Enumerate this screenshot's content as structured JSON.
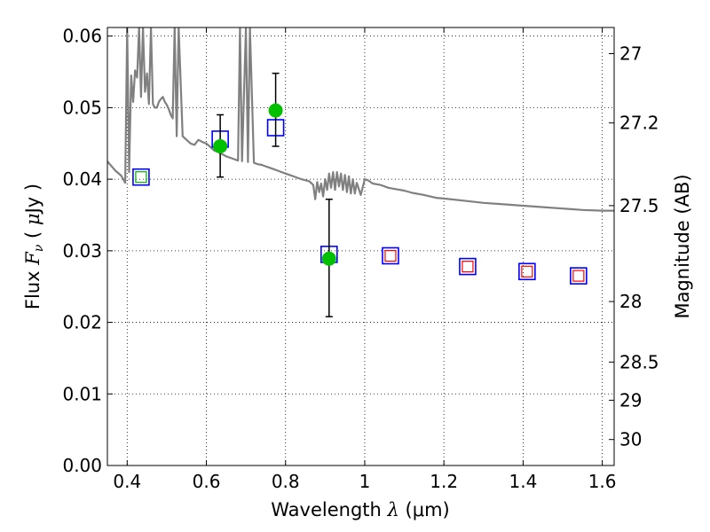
{
  "chart_data": {
    "type": "scatter",
    "xlabel_text": "Wavelength",
    "xlabel_symbol": "λ",
    "xlabel_unit": "(μm)",
    "ylabel_text": "Flux",
    "ylabel_symbol": "F",
    "ylabel_subscript": "ν",
    "ylabel_unit_open": "(",
    "ylabel_unit_mu": "μ",
    "ylabel_unit_rest": "Jy )",
    "ylabel_right": "Magnitude (AB)",
    "xlim": [
      0.35,
      1.63
    ],
    "ylim": [
      0.0,
      0.0612
    ],
    "grid": true,
    "x_ticks": [
      0.4,
      0.6,
      0.8,
      1.0,
      1.2,
      1.4,
      1.6
    ],
    "x_tick_labels": [
      "0.4",
      "0.6",
      "0.8",
      "1",
      "1.2",
      "1.4",
      "1.6"
    ],
    "y_ticks": [
      0.0,
      0.01,
      0.02,
      0.03,
      0.04,
      0.05,
      0.06
    ],
    "y_tick_labels": [
      "0.00",
      "0.01",
      "0.02",
      "0.03",
      "0.04",
      "0.05",
      "0.06"
    ],
    "right_ticks": [
      {
        "mag": 27,
        "label": "27"
      },
      {
        "mag": 27.2,
        "label": "27.2"
      },
      {
        "mag": 27.5,
        "label": "27.5"
      },
      {
        "mag": 28,
        "label": "28"
      },
      {
        "mag": 28.5,
        "label": "28.5"
      },
      {
        "mag": 29,
        "label": "29"
      },
      {
        "mag": 30,
        "label": "30"
      }
    ],
    "series": [
      {
        "kind": "model_spectrum",
        "color": "#808080",
        "x": [
          0.35,
          0.37,
          0.385,
          0.395,
          0.4,
          0.405,
          0.41,
          0.415,
          0.42,
          0.425,
          0.43,
          0.435,
          0.44,
          0.445,
          0.45,
          0.455,
          0.46,
          0.465,
          0.47,
          0.475,
          0.48,
          0.485,
          0.49,
          0.495,
          0.5,
          0.505,
          0.51,
          0.515,
          0.52,
          0.525,
          0.53,
          0.54,
          0.55,
          0.56,
          0.57,
          0.58,
          0.59,
          0.6,
          0.61,
          0.62,
          0.63,
          0.64,
          0.65,
          0.66,
          0.67,
          0.68,
          0.685,
          0.69,
          0.7,
          0.705,
          0.71,
          0.72,
          0.73,
          0.74,
          0.75,
          0.76,
          0.77,
          0.78,
          0.79,
          0.8,
          0.82,
          0.84,
          0.86,
          0.87,
          0.875,
          0.88,
          0.885,
          0.89,
          0.895,
          0.9,
          0.905,
          0.91,
          0.915,
          0.92,
          0.925,
          0.93,
          0.935,
          0.94,
          0.945,
          0.95,
          0.955,
          0.96,
          0.965,
          0.97,
          0.975,
          0.98,
          0.99,
          1.0,
          1.01,
          1.02,
          1.04,
          1.06,
          1.08,
          1.1,
          1.12,
          1.15,
          1.18,
          1.2,
          1.25,
          1.3,
          1.35,
          1.4,
          1.45,
          1.5,
          1.55,
          1.6,
          1.63
        ],
        "y": [
          0.0425,
          0.0412,
          0.0405,
          0.0395,
          0.0612,
          0.041,
          0.0545,
          0.0508,
          0.0552,
          0.0542,
          0.0612,
          0.0515,
          0.0612,
          0.0522,
          0.0548,
          0.0505,
          0.0612,
          0.0505,
          0.05,
          0.05,
          0.0508,
          0.0512,
          0.0515,
          0.0508,
          0.0504,
          0.0498,
          0.049,
          0.0485,
          0.0612,
          0.046,
          0.0612,
          0.046,
          0.0455,
          0.045,
          0.0448,
          0.0455,
          0.0452,
          0.045,
          0.0445,
          0.044,
          0.0438,
          0.0435,
          0.0432,
          0.043,
          0.0428,
          0.0426,
          0.0612,
          0.0425,
          0.0612,
          0.0424,
          0.0612,
          0.0423,
          0.0421,
          0.042,
          0.0418,
          0.0416,
          0.0414,
          0.0412,
          0.041,
          0.0408,
          0.0404,
          0.04,
          0.0397,
          0.0392,
          0.0372,
          0.0396,
          0.0382,
          0.0394,
          0.0376,
          0.04,
          0.0385,
          0.0408,
          0.0388,
          0.041,
          0.0385,
          0.041,
          0.039,
          0.0408,
          0.0385,
          0.0406,
          0.0382,
          0.0404,
          0.038,
          0.04,
          0.038,
          0.0395,
          0.0378,
          0.04,
          0.0398,
          0.0394,
          0.0392,
          0.0388,
          0.0386,
          0.0384,
          0.0381,
          0.0378,
          0.0374,
          0.0373,
          0.037,
          0.0367,
          0.0365,
          0.0363,
          0.0361,
          0.0359,
          0.0357,
          0.0356,
          0.0356
        ]
      },
      {
        "kind": "model_photometry",
        "marker": "blue_open_square",
        "color": "#0000ff",
        "x": [
          0.435,
          0.635,
          0.775,
          0.91,
          1.065,
          1.26,
          1.41,
          1.54
        ],
        "y": [
          0.0403,
          0.0456,
          0.0472,
          0.0295,
          0.0293,
          0.0278,
          0.0271,
          0.0265
        ]
      },
      {
        "kind": "upper_limit_photometry",
        "marker": "red_open_square",
        "color": "#ff0000",
        "x": [
          1.065,
          1.26,
          1.41,
          1.54
        ],
        "y": [
          0.0293,
          0.0278,
          0.0271,
          0.0265
        ]
      },
      {
        "kind": "hst_photometry_small",
        "marker": "green_open_square",
        "color": "#00b000",
        "x": [
          0.435
        ],
        "y": [
          0.0403
        ]
      },
      {
        "kind": "observed_photometry",
        "marker": "green_filled_circle",
        "color": "#00c000",
        "x": [
          0.635,
          0.775,
          0.91
        ],
        "y": [
          0.0446,
          0.0496,
          0.0289
        ],
        "yerr_low": [
          0.0403,
          0.0446,
          0.0208
        ],
        "yerr_high": [
          0.049,
          0.0548,
          0.0372
        ]
      }
    ]
  }
}
